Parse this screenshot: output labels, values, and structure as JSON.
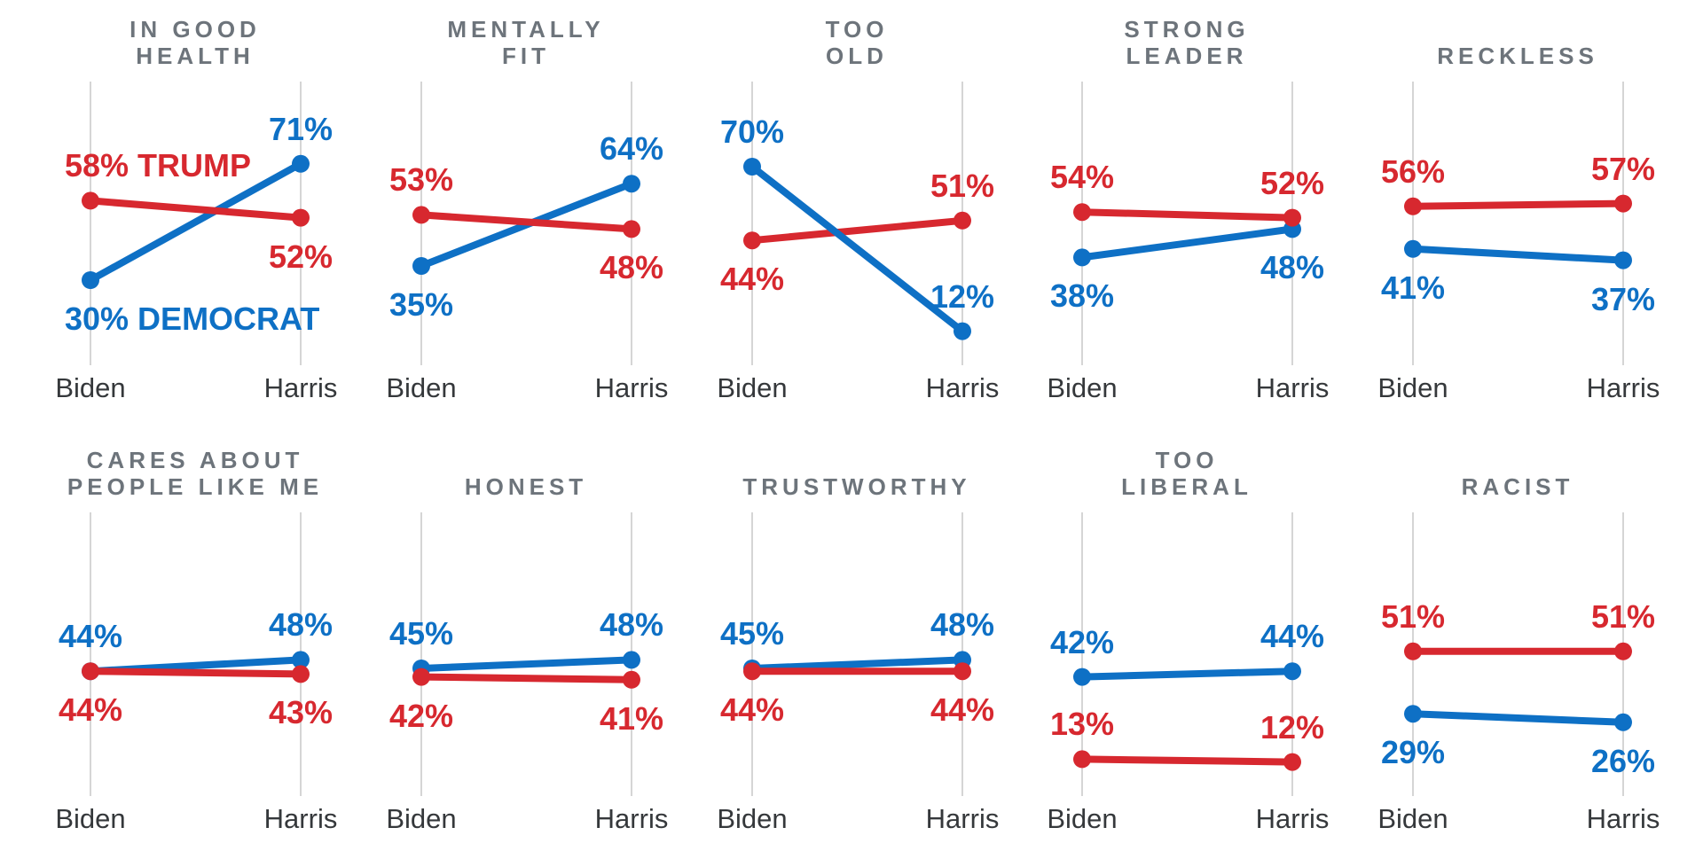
{
  "chart_data": {
    "type": "slope",
    "categories": [
      "Biden",
      "Harris"
    ],
    "value_range": [
      0,
      100
    ],
    "grid": "two vertical gridlines per panel, one per category",
    "legend_position": "inline labels in first panel (TRUMP / DEMOCRAT)",
    "colors": {
      "trump": "#d7282f",
      "democrat": "#0e70c5",
      "title": "#6d747b",
      "axis_text": "#35383b",
      "gridline": "#d5d5d5"
    },
    "panels": [
      {
        "title_lines": [
          "IN GOOD",
          "HEALTH"
        ],
        "trump": {
          "values": [
            58,
            52
          ],
          "labels": [
            "58% TRUMP",
            "52%"
          ],
          "sides": [
            "above",
            "below"
          ],
          "aligns": [
            "dot",
            "center"
          ]
        },
        "democrat": {
          "values": [
            30,
            71
          ],
          "labels": [
            "30% DEMOCRAT",
            "71%"
          ],
          "sides": [
            "below",
            "above"
          ],
          "aligns": [
            "dot",
            "center"
          ]
        },
        "top": "trump"
      },
      {
        "title_lines": [
          "MENTALLY",
          "FIT"
        ],
        "trump": {
          "values": [
            53,
            48
          ],
          "labels": [
            "53%",
            "48%"
          ],
          "sides": [
            "above",
            "below"
          ],
          "aligns": [
            "center",
            "center"
          ]
        },
        "democrat": {
          "values": [
            35,
            64
          ],
          "labels": [
            "35%",
            "64%"
          ],
          "sides": [
            "below",
            "above"
          ],
          "aligns": [
            "center",
            "center"
          ]
        },
        "top": "trump"
      },
      {
        "title_lines": [
          "TOO",
          "OLD"
        ],
        "trump": {
          "values": [
            44,
            51
          ],
          "labels": [
            "44%",
            "51%"
          ],
          "sides": [
            "below",
            "above"
          ],
          "aligns": [
            "center",
            "center"
          ]
        },
        "democrat": {
          "values": [
            70,
            12
          ],
          "labels": [
            "70%",
            "12%"
          ],
          "sides": [
            "above",
            "above"
          ],
          "aligns": [
            "center",
            "center"
          ]
        },
        "top": "democrat"
      },
      {
        "title_lines": [
          "STRONG",
          "LEADER"
        ],
        "trump": {
          "values": [
            54,
            52
          ],
          "labels": [
            "54%",
            "52%"
          ],
          "sides": [
            "above",
            "above"
          ],
          "aligns": [
            "center",
            "center"
          ]
        },
        "democrat": {
          "values": [
            38,
            48
          ],
          "labels": [
            "38%",
            "48%"
          ],
          "sides": [
            "below",
            "below"
          ],
          "aligns": [
            "center",
            "center"
          ]
        },
        "top": "trump"
      },
      {
        "title_lines": [
          "RECKLESS"
        ],
        "trump": {
          "values": [
            56,
            57
          ],
          "labels": [
            "56%",
            "57%"
          ],
          "sides": [
            "above",
            "above"
          ],
          "aligns": [
            "center",
            "center"
          ]
        },
        "democrat": {
          "values": [
            41,
            37
          ],
          "labels": [
            "41%",
            "37%"
          ],
          "sides": [
            "below",
            "below"
          ],
          "aligns": [
            "center",
            "center"
          ]
        },
        "top": "trump"
      },
      {
        "title_lines": [
          "CARES ABOUT",
          "PEOPLE LIKE ME"
        ],
        "trump": {
          "values": [
            44,
            43
          ],
          "labels": [
            "44%",
            "43%"
          ],
          "sides": [
            "below",
            "below"
          ],
          "aligns": [
            "center",
            "center"
          ]
        },
        "democrat": {
          "values": [
            44,
            48
          ],
          "labels": [
            "44%",
            "48%"
          ],
          "sides": [
            "above",
            "above"
          ],
          "aligns": [
            "center",
            "center"
          ]
        },
        "top": "trump"
      },
      {
        "title_lines": [
          "HONEST"
        ],
        "trump": {
          "values": [
            42,
            41
          ],
          "labels": [
            "42%",
            "41%"
          ],
          "sides": [
            "below",
            "below"
          ],
          "aligns": [
            "center",
            "center"
          ]
        },
        "democrat": {
          "values": [
            45,
            48
          ],
          "labels": [
            "45%",
            "48%"
          ],
          "sides": [
            "above",
            "above"
          ],
          "aligns": [
            "center",
            "center"
          ]
        },
        "top": "trump"
      },
      {
        "title_lines": [
          "TRUSTWORTHY"
        ],
        "trump": {
          "values": [
            44,
            44
          ],
          "labels": [
            "44%",
            "44%"
          ],
          "sides": [
            "below",
            "below"
          ],
          "aligns": [
            "center",
            "center"
          ]
        },
        "democrat": {
          "values": [
            45,
            48
          ],
          "labels": [
            "45%",
            "48%"
          ],
          "sides": [
            "above",
            "above"
          ],
          "aligns": [
            "center",
            "center"
          ]
        },
        "top": "trump"
      },
      {
        "title_lines": [
          "TOO",
          "LIBERAL"
        ],
        "trump": {
          "values": [
            13,
            12
          ],
          "labels": [
            "13%",
            "12%"
          ],
          "sides": [
            "above",
            "above"
          ],
          "aligns": [
            "center",
            "center"
          ]
        },
        "democrat": {
          "values": [
            42,
            44
          ],
          "labels": [
            "42%",
            "44%"
          ],
          "sides": [
            "above",
            "above"
          ],
          "aligns": [
            "center",
            "center"
          ]
        },
        "top": "trump"
      },
      {
        "title_lines": [
          "RACIST"
        ],
        "trump": {
          "values": [
            51,
            51
          ],
          "labels": [
            "51%",
            "51%"
          ],
          "sides": [
            "above",
            "above"
          ],
          "aligns": [
            "center",
            "center"
          ]
        },
        "democrat": {
          "values": [
            29,
            26
          ],
          "labels": [
            "29%",
            "26%"
          ],
          "sides": [
            "below",
            "below"
          ],
          "aligns": [
            "center",
            "center"
          ]
        },
        "top": "trump"
      }
    ]
  }
}
